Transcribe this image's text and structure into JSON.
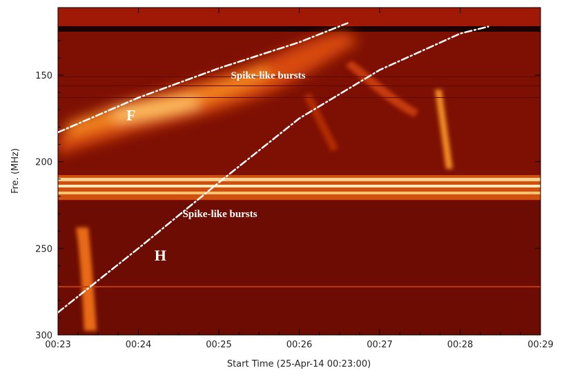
{
  "chart_data": {
    "type": "heatmap",
    "title": "",
    "xlabel": "Start Time (25-Apr-14 00:23:00)",
    "ylabel": "Fre. (MHz)",
    "x_tick_labels": [
      "00:23",
      "00:24",
      "00:25",
      "00:26",
      "00:27",
      "00:28",
      "00:29"
    ],
    "x_ticks_min": [
      0,
      1,
      2,
      3,
      4,
      5,
      6
    ],
    "xlim_min": [
      0,
      6
    ],
    "y_tick_labels": [
      "150",
      "200",
      "250",
      "300"
    ],
    "y_ticks": [
      150,
      200,
      250,
      300
    ],
    "ylim": [
      300,
      111
    ],
    "colormap": [
      "#3a0000",
      "#7a0a00",
      "#b82a04",
      "#ec6e10",
      "#ffb040",
      "#fff4c8"
    ],
    "background_color": "#7e1003",
    "lines": [
      {
        "name": "F",
        "style": "dash-dot",
        "color": "#ffffff",
        "points_min_mhz": [
          [
            0,
            183
          ],
          [
            1,
            163
          ],
          [
            2,
            146
          ],
          [
            3,
            131
          ],
          [
            3.6,
            120
          ]
        ]
      },
      {
        "name": "H",
        "style": "dash-dot",
        "color": "#ffffff",
        "points_min_mhz": [
          [
            0,
            287
          ],
          [
            1,
            250
          ],
          [
            2,
            212
          ],
          [
            3,
            175
          ],
          [
            4,
            147
          ],
          [
            5,
            126
          ],
          [
            5.35,
            122
          ]
        ]
      }
    ],
    "annotations": [
      {
        "text": "Spike-like bursts",
        "x_min": 2.15,
        "y_mhz": 152,
        "size": "small"
      },
      {
        "text": "F",
        "x_min": 0.85,
        "y_mhz": 176,
        "size": "large"
      },
      {
        "text": "Spike-like bursts",
        "x_min": 1.55,
        "y_mhz": 232,
        "size": "small"
      },
      {
        "text": "H",
        "x_min": 1.2,
        "y_mhz": 257,
        "size": "large"
      }
    ]
  }
}
